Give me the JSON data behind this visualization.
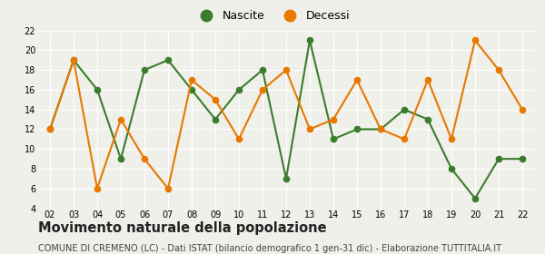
{
  "years": [
    2,
    3,
    4,
    5,
    6,
    7,
    8,
    9,
    10,
    11,
    12,
    13,
    14,
    15,
    16,
    17,
    18,
    19,
    20,
    21,
    22
  ],
  "nascite": [
    12,
    19,
    16,
    9,
    18,
    19,
    16,
    13,
    16,
    18,
    7,
    21,
    11,
    12,
    12,
    14,
    13,
    8,
    5,
    9,
    9
  ],
  "decessi": [
    12,
    19,
    6,
    13,
    9,
    6,
    17,
    15,
    11,
    16,
    18,
    12,
    13,
    17,
    12,
    11,
    17,
    11,
    21,
    18,
    14
  ],
  "nascite_color": "#3a7d2c",
  "decessi_color": "#e87800",
  "background_color": "#f0f0eb",
  "grid_color": "#ffffff",
  "title": "Movimento naturale della popolazione",
  "subtitle": "COMUNE DI CREMENO (LC) - Dati ISTAT (bilancio demografico 1 gen-31 dic) - Elaborazione TUTTITALIA.IT",
  "legend_labels": [
    "Nascite",
    "Decessi"
  ],
  "ylim": [
    4,
    22
  ],
  "yticks": [
    4,
    6,
    8,
    10,
    12,
    14,
    16,
    18,
    20,
    22
  ],
  "title_fontsize": 10.5,
  "subtitle_fontsize": 7.0,
  "marker_size": 4.5,
  "linewidth": 1.5
}
